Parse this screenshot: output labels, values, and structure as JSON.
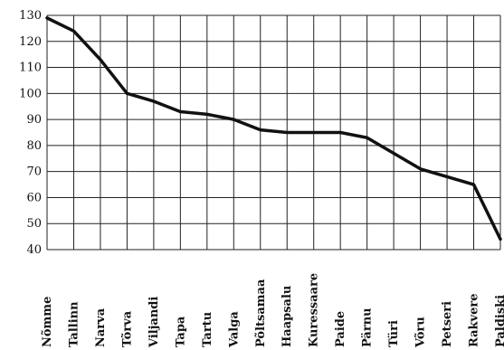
{
  "chart_data": {
    "type": "line",
    "title": "",
    "xlabel": "",
    "ylabel": "",
    "grid": true,
    "ylim": [
      40,
      130
    ],
    "yticks": [
      "40",
      "50",
      "60",
      "70",
      "80",
      "90",
      "100",
      "110",
      "120",
      "130"
    ],
    "categories": [
      "Nõmme",
      "Tallinn",
      "Narva",
      "Tõrva",
      "Viljandi",
      "Tapa",
      "Tartu",
      "Valga",
      "Põltsamaa",
      "Haapsalu",
      "Kuressaare",
      "Paide",
      "Pärnu",
      "Türi",
      "Võru",
      "Petseri",
      "Rakvere",
      "Paldiski"
    ],
    "series": [
      {
        "values": [
          129,
          124,
          113,
          100,
          97,
          93,
          92,
          90,
          86,
          85,
          85,
          85,
          83,
          77,
          71,
          68,
          65,
          44
        ]
      }
    ],
    "colors": {
      "line": "#111111",
      "grid": "#222222",
      "background": "#ffffff"
    }
  }
}
